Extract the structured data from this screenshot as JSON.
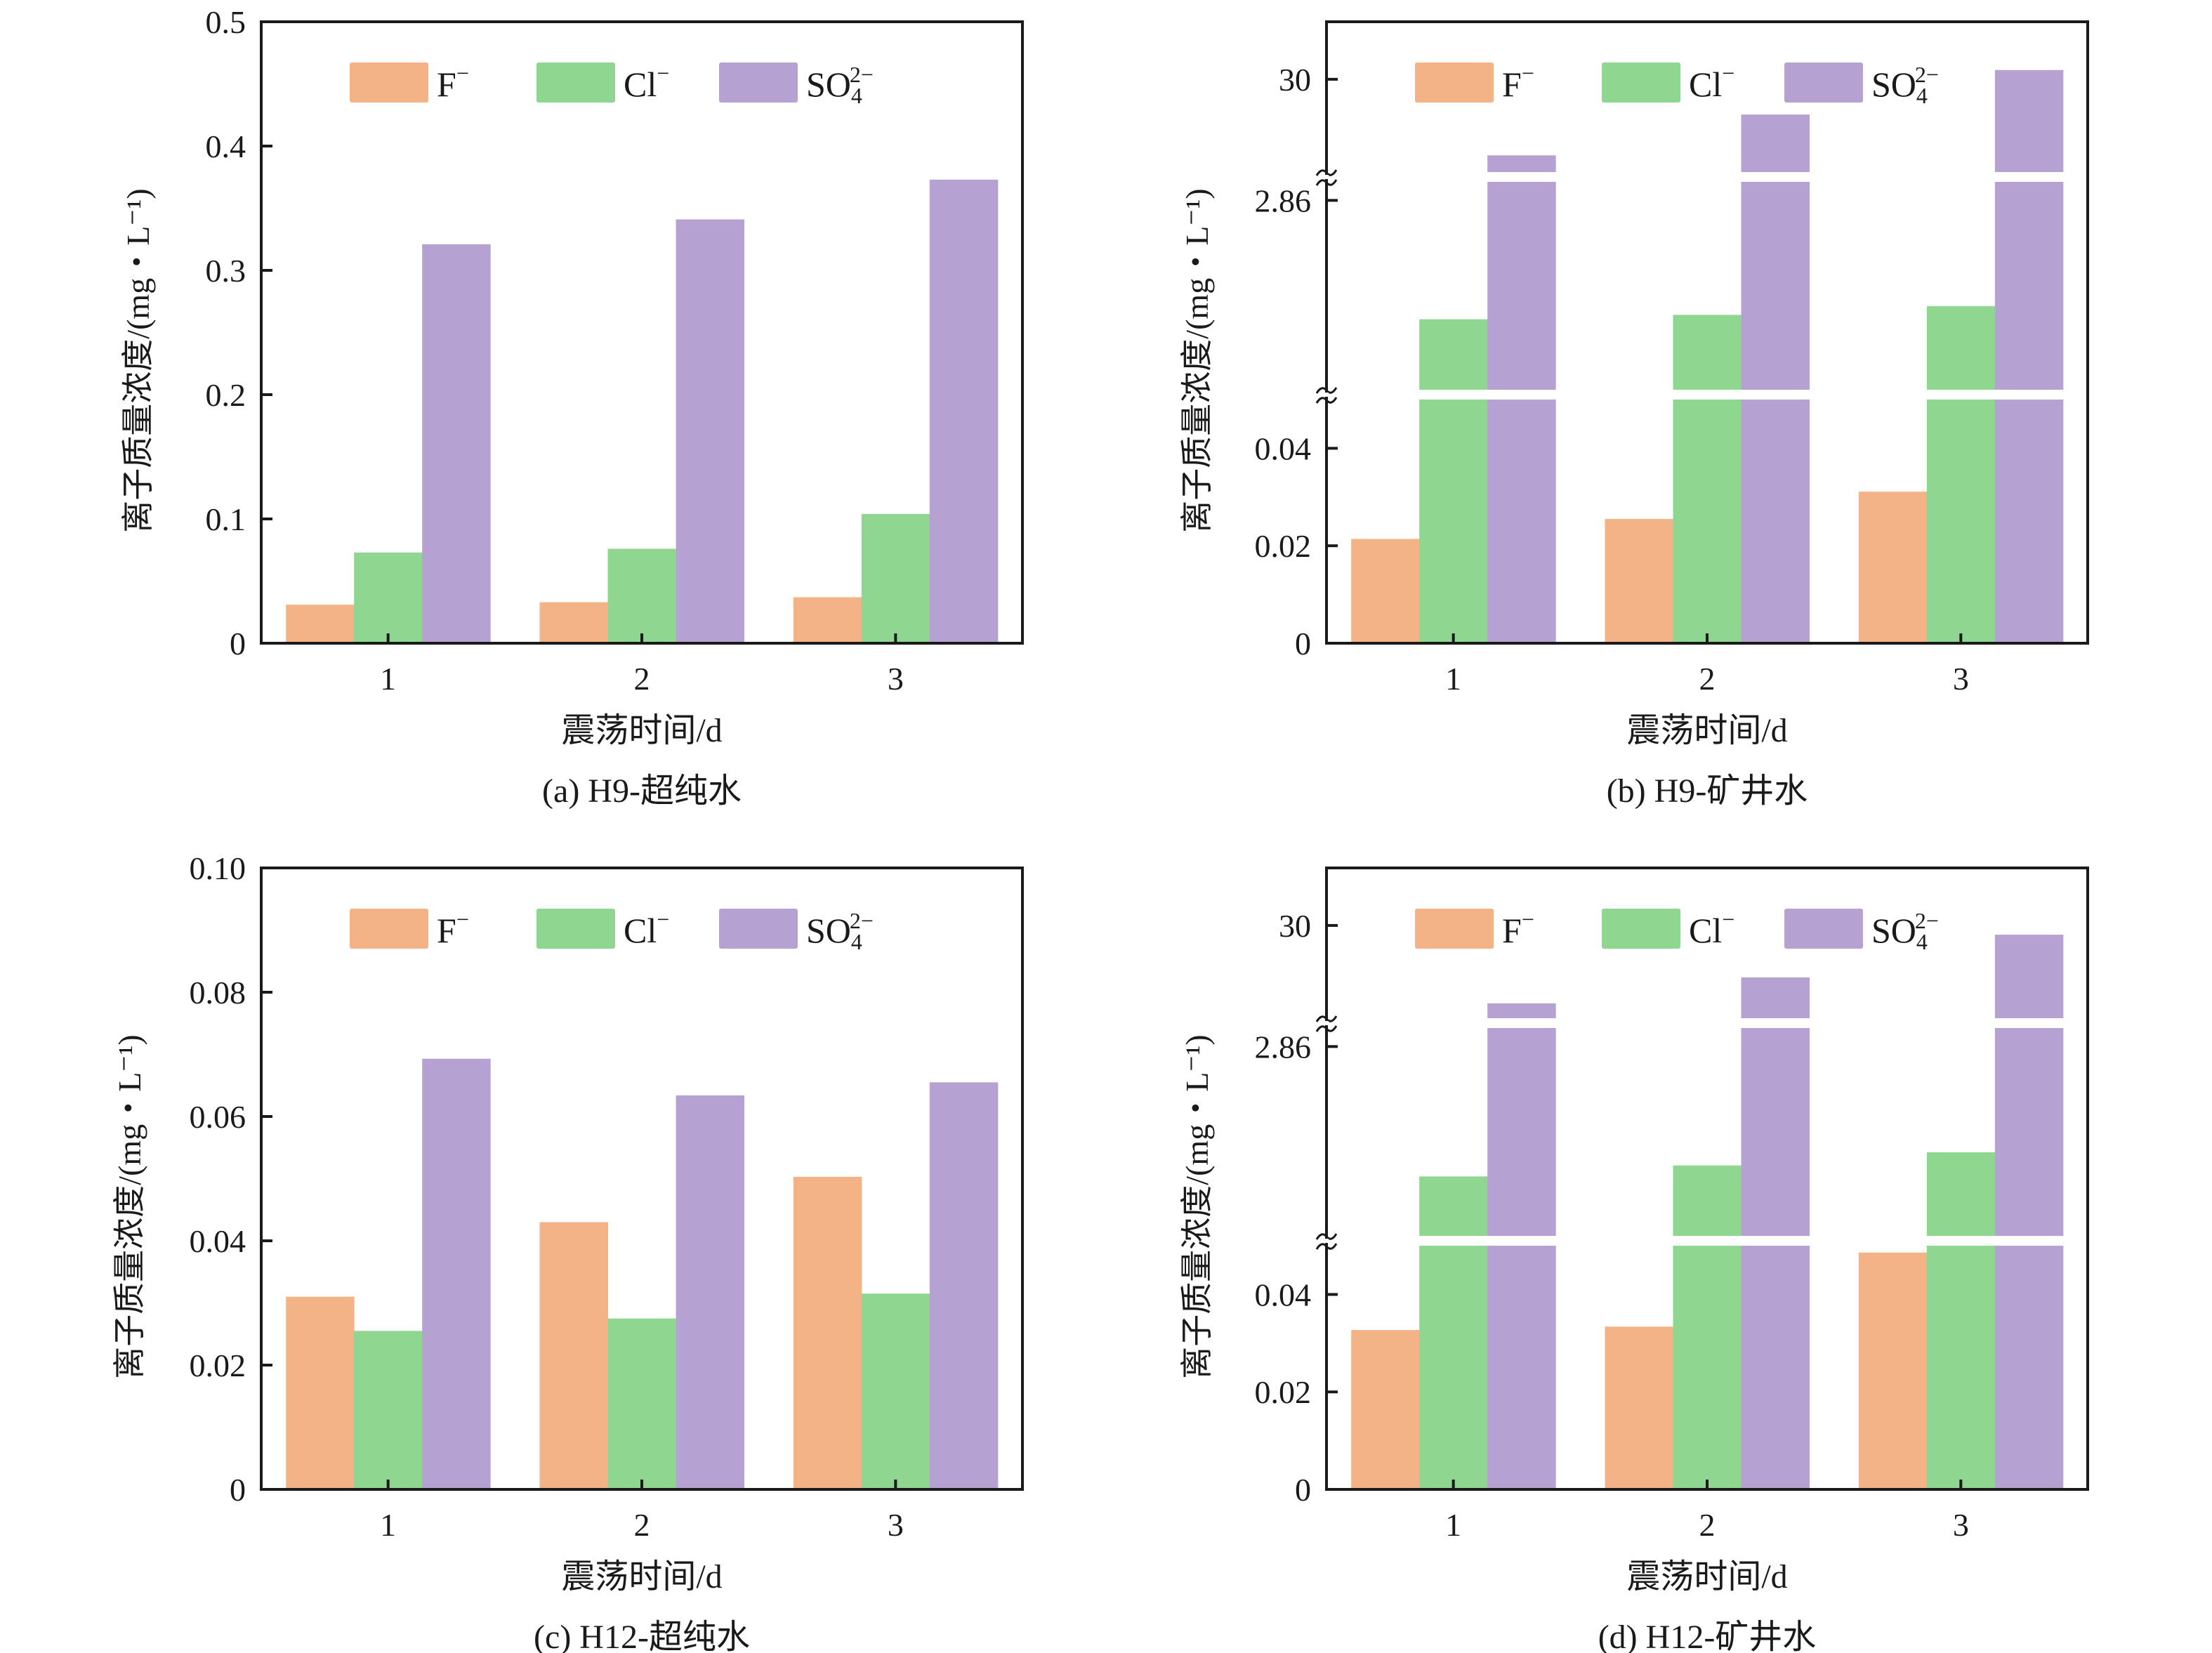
{
  "figure": {
    "y_axis_label": "离子质量浓度/(mg・L⁻¹)",
    "x_axis_label": "震荡时间/d"
  },
  "colors": {
    "F": "#F4B386",
    "Cl": "#8FD691",
    "SO4": "#B6A2D2"
  },
  "legend": [
    {
      "key": "F",
      "base": "F",
      "sup": "−",
      "sub": ""
    },
    {
      "key": "Cl",
      "base": "Cl",
      "sup": "−",
      "sub": ""
    },
    {
      "key": "SO4",
      "base": "SO",
      "sup": "2−",
      "sub": "4"
    }
  ],
  "chart_data": [
    {
      "id": "a",
      "type": "bar",
      "title": "(a) H9-超纯水",
      "xlabel": "震荡时间/d",
      "ylabel": "离子质量浓度/(mg・L⁻¹)",
      "categories": [
        "1",
        "2",
        "3"
      ],
      "ylim": [
        0,
        0.5
      ],
      "yticks": [
        0,
        0.1,
        0.2,
        0.3,
        0.4,
        0.5
      ],
      "ytick_labels": [
        "0",
        "0.1",
        "0.2",
        "0.3",
        "0.4",
        "0.5"
      ],
      "broken_axis": false,
      "legend_position": "top",
      "series": [
        {
          "name": "F⁻",
          "key": "F",
          "values": [
            0.031,
            0.033,
            0.037
          ]
        },
        {
          "name": "Cl⁻",
          "key": "Cl",
          "values": [
            0.073,
            0.076,
            0.104
          ]
        },
        {
          "name": "SO₄²⁻",
          "key": "SO4",
          "values": [
            0.321,
            0.341,
            0.373
          ]
        }
      ]
    },
    {
      "id": "b",
      "type": "bar",
      "title": "(b) H9-矿井水",
      "xlabel": "震荡时间/d",
      "ylabel": "离子质量浓度/(mg・L⁻¹)",
      "categories": [
        "1",
        "2",
        "3"
      ],
      "broken_axis": true,
      "axis_segments": [
        [
          0,
          0.05
        ],
        [
          2.0,
          2.944
        ],
        [
          25,
          33.1
        ]
      ],
      "yticks": [
        0,
        0.02,
        0.04,
        2.86,
        30
      ],
      "ytick_labels": [
        "0",
        "0.02",
        "0.04",
        "2.86",
        "30"
      ],
      "legend_position": "top",
      "series": [
        {
          "name": "F⁻",
          "key": "F",
          "values": [
            0.0214,
            0.0255,
            0.0311
          ]
        },
        {
          "name": "Cl⁻",
          "key": "Cl",
          "values": [
            2.32,
            2.34,
            2.38
          ]
        },
        {
          "name": "SO₄²⁻",
          "key": "SO4",
          "values": [
            25.9,
            28.1,
            30.5
          ]
        }
      ]
    },
    {
      "id": "c",
      "type": "bar",
      "title": "(c) H12-超纯水",
      "xlabel": "震荡时间/d",
      "ylabel": "离子质量浓度/(mg・L⁻¹)",
      "categories": [
        "1",
        "2",
        "3"
      ],
      "ylim": [
        0,
        0.1
      ],
      "yticks": [
        0,
        0.02,
        0.04,
        0.06,
        0.08,
        0.1
      ],
      "ytick_labels": [
        "0",
        "0.02",
        "0.04",
        "0.06",
        "0.08",
        "0.10"
      ],
      "broken_axis": false,
      "legend_position": "top",
      "series": [
        {
          "name": "F⁻",
          "key": "F",
          "values": [
            0.031,
            0.043,
            0.0503
          ]
        },
        {
          "name": "Cl⁻",
          "key": "Cl",
          "values": [
            0.0255,
            0.0275,
            0.0315
          ]
        },
        {
          "name": "SO₄²⁻",
          "key": "SO4",
          "values": [
            0.0693,
            0.0634,
            0.0655
          ]
        }
      ]
    },
    {
      "id": "d",
      "type": "bar",
      "title": "(d) H12-矿井水",
      "xlabel": "震荡时间/d",
      "ylabel": "离子质量浓度/(mg・L⁻¹)",
      "categories": [
        "1",
        "2",
        "3"
      ],
      "broken_axis": true,
      "axis_segments": [
        [
          0,
          0.05
        ],
        [
          2.0,
          2.944
        ],
        [
          25,
          33.1
        ]
      ],
      "yticks": [
        0,
        0.02,
        0.04,
        2.86,
        30
      ],
      "ytick_labels": [
        "0",
        "0.02",
        "0.04",
        "2.86",
        "30"
      ],
      "legend_position": "top",
      "series": [
        {
          "name": "F⁻",
          "key": "F",
          "values": [
            0.0327,
            0.0334,
            0.0486
          ]
        },
        {
          "name": "Cl⁻",
          "key": "Cl",
          "values": [
            2.27,
            2.32,
            2.38
          ]
        },
        {
          "name": "SO₄²⁻",
          "key": "SO4",
          "values": [
            25.8,
            27.2,
            29.5
          ]
        }
      ]
    }
  ]
}
